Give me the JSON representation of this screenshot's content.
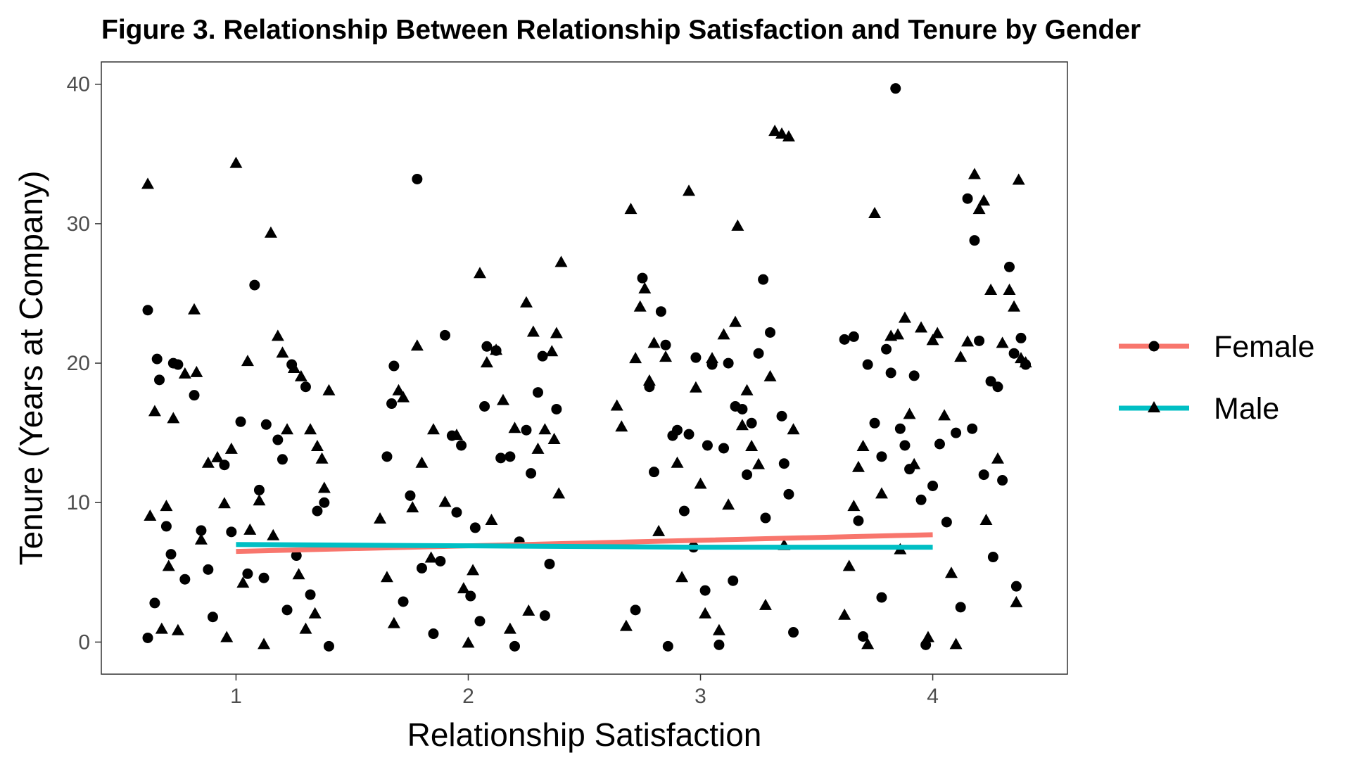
{
  "chart_data": {
    "type": "scatter",
    "title": "Figure 3. Relationship Between Relationship Satisfaction and Tenure by Gender",
    "xlabel": "Relationship Satisfaction",
    "ylabel": "Tenure (Years at Company)",
    "xlim": [
      0.42,
      4.58
    ],
    "ylim": [
      -2.3,
      41.6
    ],
    "x_ticks": [
      1,
      2,
      3,
      4
    ],
    "y_ticks": [
      0,
      10,
      20,
      30,
      40
    ],
    "grid": false,
    "legend_position": "right",
    "colors": {
      "points": "#000000",
      "panel_border": "#333333",
      "tick_label": "#4d4d4d"
    },
    "series": [
      {
        "name": "Female",
        "marker": "circle",
        "color": "#F8766D",
        "trend": [
          [
            1,
            6.5
          ],
          [
            2,
            6.9
          ],
          [
            3,
            7.3
          ],
          [
            4,
            7.7
          ]
        ],
        "points": [
          [
            0.62,
            23.8
          ],
          [
            0.66,
            20.3
          ],
          [
            0.67,
            18.8
          ],
          [
            0.73,
            20.0
          ],
          [
            0.75,
            19.9
          ],
          [
            0.82,
            17.7
          ],
          [
            0.62,
            0.3
          ],
          [
            0.65,
            2.8
          ],
          [
            0.7,
            8.3
          ],
          [
            0.72,
            6.3
          ],
          [
            0.78,
            4.5
          ],
          [
            0.85,
            8.0
          ],
          [
            0.88,
            5.2
          ],
          [
            0.95,
            12.7
          ],
          [
            1.02,
            15.8
          ],
          [
            1.05,
            4.9
          ],
          [
            1.08,
            25.6
          ],
          [
            1.1,
            10.9
          ],
          [
            1.13,
            15.6
          ],
          [
            1.18,
            14.5
          ],
          [
            1.2,
            13.1
          ],
          [
            1.24,
            19.9
          ],
          [
            1.26,
            6.2
          ],
          [
            1.3,
            18.3
          ],
          [
            1.35,
            9.4
          ],
          [
            1.38,
            10.0
          ],
          [
            1.4,
            -0.3
          ],
          [
            1.22,
            2.3
          ],
          [
            1.12,
            4.6
          ],
          [
            0.9,
            1.8
          ],
          [
            0.98,
            7.9
          ],
          [
            1.32,
            3.4
          ],
          [
            1.65,
            13.3
          ],
          [
            1.67,
            17.1
          ],
          [
            1.68,
            19.8
          ],
          [
            1.75,
            10.5
          ],
          [
            1.78,
            33.2
          ],
          [
            1.8,
            5.3
          ],
          [
            1.85,
            0.6
          ],
          [
            1.9,
            22.0
          ],
          [
            1.93,
            14.8
          ],
          [
            1.97,
            14.1
          ],
          [
            2.03,
            8.2
          ],
          [
            2.05,
            1.5
          ],
          [
            2.07,
            16.9
          ],
          [
            2.08,
            21.2
          ],
          [
            2.12,
            20.9
          ],
          [
            2.14,
            13.2
          ],
          [
            2.18,
            13.3
          ],
          [
            2.2,
            -0.3
          ],
          [
            2.25,
            15.2
          ],
          [
            2.27,
            12.1
          ],
          [
            2.3,
            17.9
          ],
          [
            2.32,
            20.5
          ],
          [
            2.35,
            5.6
          ],
          [
            2.38,
            16.7
          ],
          [
            1.72,
            2.9
          ],
          [
            1.88,
            5.8
          ],
          [
            2.01,
            3.3
          ],
          [
            2.22,
            7.2
          ],
          [
            2.33,
            1.9
          ],
          [
            1.95,
            9.3
          ],
          [
            2.75,
            26.1
          ],
          [
            2.78,
            18.3
          ],
          [
            2.8,
            12.2
          ],
          [
            2.83,
            23.7
          ],
          [
            2.85,
            21.3
          ],
          [
            2.88,
            14.8
          ],
          [
            2.9,
            15.2
          ],
          [
            2.95,
            14.9
          ],
          [
            2.98,
            20.4
          ],
          [
            3.03,
            14.1
          ],
          [
            3.05,
            19.9
          ],
          [
            3.1,
            13.9
          ],
          [
            3.12,
            20.0
          ],
          [
            3.15,
            16.9
          ],
          [
            3.18,
            16.7
          ],
          [
            3.2,
            12.0
          ],
          [
            3.22,
            15.7
          ],
          [
            3.25,
            20.7
          ],
          [
            3.27,
            26.0
          ],
          [
            3.3,
            22.2
          ],
          [
            3.35,
            16.2
          ],
          [
            3.36,
            12.8
          ],
          [
            3.38,
            10.6
          ],
          [
            3.4,
            0.7
          ],
          [
            2.72,
            2.3
          ],
          [
            2.86,
            -0.3
          ],
          [
            2.97,
            6.8
          ],
          [
            3.08,
            -0.2
          ],
          [
            3.14,
            4.4
          ],
          [
            3.28,
            8.9
          ],
          [
            2.93,
            9.4
          ],
          [
            3.02,
            3.7
          ],
          [
            3.62,
            21.7
          ],
          [
            3.66,
            21.9
          ],
          [
            3.68,
            8.7
          ],
          [
            3.72,
            19.9
          ],
          [
            3.75,
            15.7
          ],
          [
            3.78,
            13.3
          ],
          [
            3.8,
            21.0
          ],
          [
            3.82,
            19.3
          ],
          [
            3.84,
            39.7
          ],
          [
            3.86,
            15.3
          ],
          [
            3.88,
            14.1
          ],
          [
            3.9,
            12.4
          ],
          [
            3.92,
            19.1
          ],
          [
            3.95,
            10.2
          ],
          [
            4.0,
            11.2
          ],
          [
            4.03,
            14.2
          ],
          [
            4.1,
            15.0
          ],
          [
            4.15,
            31.8
          ],
          [
            4.17,
            15.3
          ],
          [
            4.18,
            28.8
          ],
          [
            4.2,
            21.6
          ],
          [
            4.22,
            12.0
          ],
          [
            4.25,
            18.7
          ],
          [
            4.28,
            18.3
          ],
          [
            4.3,
            11.6
          ],
          [
            4.33,
            26.9
          ],
          [
            4.35,
            20.7
          ],
          [
            4.38,
            21.8
          ],
          [
            4.4,
            19.9
          ],
          [
            4.36,
            4.0
          ],
          [
            3.7,
            0.4
          ],
          [
            3.97,
            -0.2
          ],
          [
            4.12,
            2.5
          ],
          [
            4.26,
            6.1
          ],
          [
            3.78,
            3.2
          ],
          [
            4.06,
            8.6
          ]
        ]
      },
      {
        "name": "Male",
        "marker": "triangle",
        "color": "#00BFC4",
        "trend": [
          [
            1,
            7.0
          ],
          [
            2,
            6.9
          ],
          [
            3,
            6.8
          ],
          [
            4,
            6.8
          ]
        ],
        "points": [
          [
            0.62,
            32.8
          ],
          [
            0.63,
            9.0
          ],
          [
            0.65,
            16.5
          ],
          [
            0.68,
            0.9
          ],
          [
            0.7,
            9.7
          ],
          [
            0.73,
            16.0
          ],
          [
            0.78,
            19.2
          ],
          [
            0.82,
            23.8
          ],
          [
            0.83,
            19.3
          ],
          [
            0.88,
            12.8
          ],
          [
            0.92,
            13.2
          ],
          [
            0.95,
            9.9
          ],
          [
            0.98,
            13.8
          ],
          [
            1.0,
            34.3
          ],
          [
            1.05,
            20.1
          ],
          [
            1.1,
            10.1
          ],
          [
            1.15,
            29.3
          ],
          [
            1.18,
            21.9
          ],
          [
            1.2,
            20.7
          ],
          [
            1.22,
            15.2
          ],
          [
            1.25,
            19.6
          ],
          [
            1.28,
            19.0
          ],
          [
            1.32,
            15.2
          ],
          [
            1.35,
            14.0
          ],
          [
            1.37,
            13.1
          ],
          [
            1.4,
            18.0
          ],
          [
            1.38,
            11.0
          ],
          [
            1.3,
            0.9
          ],
          [
            0.75,
            0.8
          ],
          [
            0.85,
            7.3
          ],
          [
            1.12,
            -0.2
          ],
          [
            1.03,
            4.2
          ],
          [
            0.96,
            0.3
          ],
          [
            1.16,
            7.6
          ],
          [
            1.27,
            4.8
          ],
          [
            0.71,
            5.4
          ],
          [
            1.06,
            8.0
          ],
          [
            1.34,
            2.0
          ],
          [
            1.62,
            8.8
          ],
          [
            1.65,
            4.6
          ],
          [
            1.7,
            18.0
          ],
          [
            1.72,
            17.5
          ],
          [
            1.78,
            21.2
          ],
          [
            1.8,
            12.8
          ],
          [
            1.85,
            15.2
          ],
          [
            1.9,
            10.0
          ],
          [
            1.95,
            14.8
          ],
          [
            2.05,
            26.4
          ],
          [
            2.08,
            20.0
          ],
          [
            2.12,
            20.9
          ],
          [
            2.15,
            17.3
          ],
          [
            2.2,
            15.3
          ],
          [
            2.25,
            24.3
          ],
          [
            2.28,
            22.2
          ],
          [
            2.3,
            13.8
          ],
          [
            2.33,
            15.2
          ],
          [
            2.37,
            14.5
          ],
          [
            2.38,
            22.1
          ],
          [
            2.4,
            27.2
          ],
          [
            2.36,
            20.8
          ],
          [
            2.0,
            -0.1
          ],
          [
            2.18,
            0.9
          ],
          [
            1.68,
            1.3
          ],
          [
            1.84,
            6.0
          ],
          [
            1.98,
            3.8
          ],
          [
            2.1,
            8.7
          ],
          [
            2.26,
            2.2
          ],
          [
            2.39,
            10.6
          ],
          [
            1.76,
            9.6
          ],
          [
            2.02,
            5.1
          ],
          [
            2.64,
            16.9
          ],
          [
            2.66,
            15.4
          ],
          [
            2.7,
            31.0
          ],
          [
            2.72,
            20.3
          ],
          [
            2.74,
            24.0
          ],
          [
            2.76,
            25.3
          ],
          [
            2.78,
            18.7
          ],
          [
            2.8,
            21.4
          ],
          [
            2.85,
            20.4
          ],
          [
            2.9,
            12.8
          ],
          [
            2.95,
            32.3
          ],
          [
            2.98,
            18.2
          ],
          [
            3.0,
            11.3
          ],
          [
            3.05,
            20.3
          ],
          [
            3.1,
            22.0
          ],
          [
            3.15,
            22.9
          ],
          [
            3.16,
            29.8
          ],
          [
            3.18,
            15.5
          ],
          [
            3.2,
            18.0
          ],
          [
            3.22,
            14.0
          ],
          [
            3.25,
            12.7
          ],
          [
            3.3,
            19.0
          ],
          [
            3.32,
            36.6
          ],
          [
            3.35,
            36.4
          ],
          [
            3.38,
            36.2
          ],
          [
            3.4,
            15.2
          ],
          [
            3.08,
            0.8
          ],
          [
            2.92,
            4.6
          ],
          [
            2.68,
            1.1
          ],
          [
            3.28,
            2.6
          ],
          [
            3.36,
            6.9
          ],
          [
            3.12,
            9.8
          ],
          [
            2.82,
            7.9
          ],
          [
            3.02,
            2.0
          ],
          [
            3.62,
            1.9
          ],
          [
            3.64,
            5.4
          ],
          [
            3.68,
            12.5
          ],
          [
            3.7,
            14.0
          ],
          [
            3.75,
            30.7
          ],
          [
            3.78,
            10.6
          ],
          [
            3.82,
            21.9
          ],
          [
            3.85,
            22.0
          ],
          [
            3.88,
            23.2
          ],
          [
            3.9,
            16.3
          ],
          [
            3.92,
            12.7
          ],
          [
            3.95,
            22.5
          ],
          [
            4.0,
            21.6
          ],
          [
            4.02,
            22.1
          ],
          [
            4.05,
            16.2
          ],
          [
            4.12,
            20.4
          ],
          [
            4.15,
            21.5
          ],
          [
            4.18,
            33.5
          ],
          [
            4.2,
            31.0
          ],
          [
            4.22,
            31.6
          ],
          [
            4.25,
            25.2
          ],
          [
            4.28,
            13.1
          ],
          [
            4.3,
            21.4
          ],
          [
            4.33,
            25.2
          ],
          [
            4.35,
            24.0
          ],
          [
            4.37,
            33.1
          ],
          [
            4.38,
            20.3
          ],
          [
            4.4,
            20.0
          ],
          [
            4.23,
            8.7
          ],
          [
            4.1,
            -0.2
          ],
          [
            3.72,
            -0.2
          ],
          [
            3.98,
            0.3
          ],
          [
            4.36,
            2.8
          ],
          [
            3.86,
            6.6
          ],
          [
            4.08,
            4.9
          ],
          [
            3.66,
            9.7
          ]
        ]
      }
    ]
  }
}
